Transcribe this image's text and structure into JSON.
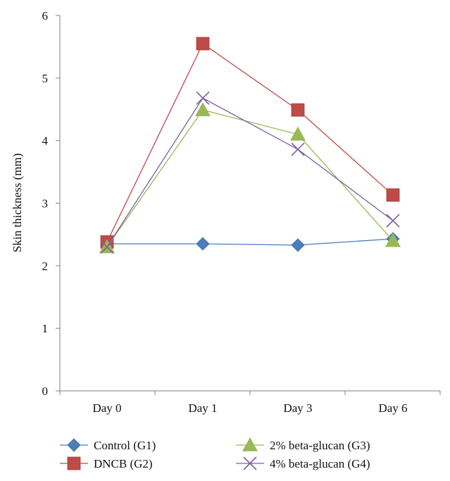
{
  "chart_data": {
    "type": "line",
    "title": "",
    "xlabel": "",
    "ylabel": "Skin thickness (mm)",
    "categories": [
      "Day 0",
      "Day 1",
      "Day 3",
      "Day 6"
    ],
    "ylim": [
      0,
      6
    ],
    "yticks": [
      "0",
      "1",
      "2",
      "3",
      "4",
      "5",
      "6"
    ],
    "grid": false,
    "legend_position": "bottom",
    "series": [
      {
        "name": "Control (G1)",
        "values": [
          2.35,
          2.35,
          2.33,
          2.43
        ],
        "color": "#4a7ebb",
        "marker": "diamond"
      },
      {
        "name": "DNCB (G2)",
        "values": [
          2.38,
          5.55,
          4.49,
          3.13
        ],
        "color": "#be4b48",
        "marker": "square"
      },
      {
        "name": "2% beta-glucan (G3)",
        "values": [
          2.3,
          4.49,
          4.1,
          2.4
        ],
        "color": "#98b954",
        "marker": "triangle"
      },
      {
        "name": "4% beta-glucan (G4)",
        "values": [
          2.3,
          4.68,
          3.86,
          2.72
        ],
        "color": "#7d5fa0",
        "marker": "x"
      }
    ]
  }
}
